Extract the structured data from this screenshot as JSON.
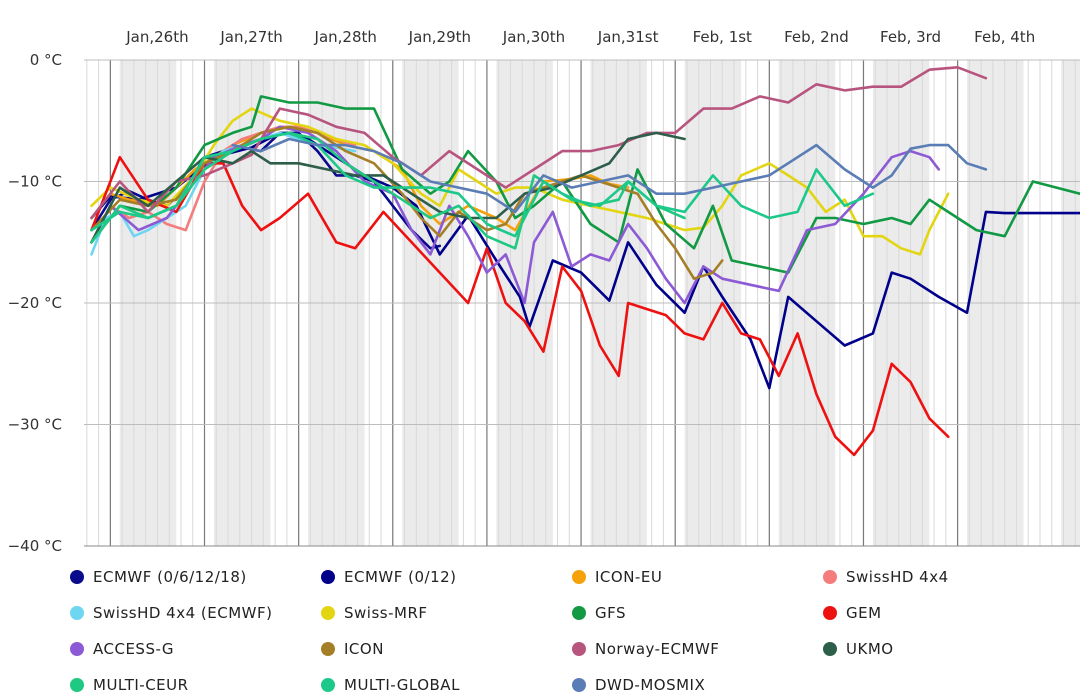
{
  "chart_data": {
    "type": "line",
    "title": "",
    "xlabel": "",
    "ylabel": "",
    "ylim": [
      -40,
      0
    ],
    "xlim": [
      25.22,
      35.8
    ],
    "y_ticks": [
      {
        "value": 0,
        "label": "0 °C"
      },
      {
        "value": -10,
        "label": "−10 °C"
      },
      {
        "value": -20,
        "label": "−20 °C"
      },
      {
        "value": -30,
        "label": "−30 °C"
      },
      {
        "value": -40,
        "label": "−40 °C"
      }
    ],
    "x_ticks": [
      {
        "value": 26,
        "label": "Jan,26th"
      },
      {
        "value": 27,
        "label": "Jan,27th"
      },
      {
        "value": 28,
        "label": "Jan,28th"
      },
      {
        "value": 29,
        "label": "Jan,29th"
      },
      {
        "value": 30,
        "label": "Jan,30th"
      },
      {
        "value": 31,
        "label": "Jan,31st"
      },
      {
        "value": 32,
        "label": "Feb, 1st"
      },
      {
        "value": 33,
        "label": "Feb, 2nd"
      },
      {
        "value": 34,
        "label": "Feb, 3rd"
      },
      {
        "value": 35,
        "label": "Feb, 4th"
      }
    ],
    "series": [
      {
        "name": "ECMWF (0/6/12/18)",
        "color": "#0a0a8c",
        "x": [
          25.3,
          25.5,
          25.7,
          25.9,
          26.1,
          26.3,
          26.5,
          26.7,
          26.9,
          27.1,
          27.3,
          27.5,
          27.7,
          27.9,
          28.1,
          28.3,
          28.5,
          28.7,
          28.9,
          29.0
        ],
        "y": [
          -14,
          -11.5,
          -10.8,
          -11.5,
          -12,
          -10.5,
          -8,
          -7.5,
          -7.2,
          -7.5,
          -6,
          -6,
          -7.5,
          -9.5,
          -9.5,
          -10,
          -12,
          -14,
          -15.5,
          -15.3
        ]
      },
      {
        "name": "ECMWF (0/12)",
        "color": "#00008b",
        "x": [
          25.3,
          25.5,
          25.8,
          26.2,
          26.6,
          27.0,
          27.3,
          27.6,
          27.9,
          28.2,
          28.5,
          28.75,
          29.0,
          29.3,
          29.6,
          29.85,
          29.95,
          30.2,
          30.5,
          30.8,
          31.0,
          31.3,
          31.6,
          31.8,
          32.0,
          32.3,
          32.5,
          32.7,
          33.0,
          33.3,
          33.6,
          33.8,
          34.0,
          34.3,
          34.6,
          34.8,
          35.0,
          35.2,
          35.8
        ],
        "y": [
          -13,
          -11.2,
          -11.5,
          -10.5,
          -8,
          -7.2,
          -6,
          -6.5,
          -8,
          -9.5,
          -10.5,
          -12,
          -16,
          -12.8,
          -16.5,
          -19.5,
          -22,
          -16.5,
          -17.5,
          -19.8,
          -15,
          -18.5,
          -20.8,
          -17,
          -19.5,
          -23,
          -27,
          -19.5,
          -21.5,
          -23.5,
          -22.5,
          -17.5,
          -18,
          -19.5,
          -20.8,
          -12.5,
          -12.6,
          -12.6,
          -12.6
        ]
      },
      {
        "name": "ICON-EU",
        "color": "#f5a10a",
        "x": [
          25.3,
          25.5,
          25.7,
          26.0,
          26.4,
          26.8,
          27.1,
          27.4,
          27.7,
          28.0,
          28.3,
          28.6,
          28.8,
          29.0,
          29.3,
          29.6,
          29.8,
          30.1,
          30.4,
          30.6,
          30.8,
          31.0
        ],
        "y": [
          -13,
          -11,
          -11.5,
          -12,
          -9,
          -7,
          -6,
          -5.5,
          -6,
          -7,
          -7.5,
          -9,
          -12,
          -13.5,
          -12,
          -13,
          -14,
          -10,
          -9.8,
          -9.5,
          -10.2,
          -10.5
        ]
      },
      {
        "name": "SwissHD 4x4",
        "color": "#f47c7c",
        "x": [
          25.3,
          25.5,
          25.7,
          25.9,
          26.1,
          26.3,
          26.5,
          26.7,
          26.9,
          27.1,
          27.3,
          27.5,
          27.7,
          27.9,
          28.1
        ],
        "y": [
          -15,
          -12,
          -13,
          -12.5,
          -13.5,
          -14,
          -10,
          -7.5,
          -6.5,
          -6,
          -5.5,
          -5.5,
          -6,
          -6.5,
          -7
        ]
      },
      {
        "name": "SwissHD 4x4 (ECMWF)",
        "color": "#6fd6f2",
        "x": [
          25.3,
          25.45,
          25.6,
          25.75,
          25.9,
          26.1,
          26.3,
          26.5,
          26.7,
          26.9,
          27.1,
          27.3,
          27.5,
          27.7,
          27.9,
          28.1
        ],
        "y": [
          -16,
          -13,
          -12.5,
          -14.5,
          -14,
          -13,
          -12,
          -9,
          -7.5,
          -7,
          -6.5,
          -6,
          -6.5,
          -7,
          -7.2,
          -7.5
        ]
      },
      {
        "name": "Swiss-MRF",
        "color": "#e3d511",
        "x": [
          25.3,
          25.5,
          25.8,
          26.1,
          26.4,
          26.6,
          26.8,
          27.0,
          27.3,
          27.6,
          27.9,
          28.2,
          28.5,
          28.8,
          29.0,
          29.2,
          29.4,
          29.6,
          29.8,
          30.0,
          30.3,
          30.6,
          30.9,
          31.2,
          31.4,
          31.6,
          31.8,
          32.0,
          32.2,
          32.5,
          32.7,
          32.9,
          33.1,
          33.3,
          33.5,
          33.7,
          33.9,
          34.1,
          34.2,
          34.4
        ],
        "y": [
          -12,
          -10.5,
          -11.5,
          -12,
          -9.5,
          -7,
          -5,
          -4,
          -5,
          -5.5,
          -6.5,
          -7,
          -8.5,
          -11,
          -12,
          -9,
          -10,
          -11,
          -10.5,
          -10.5,
          -11.5,
          -12,
          -12.5,
          -13,
          -13.5,
          -14,
          -13.8,
          -12,
          -9.5,
          -8.5,
          -9.5,
          -10.5,
          -12.5,
          -11.5,
          -14.5,
          -14.5,
          -15.5,
          -16,
          -14,
          -11
        ]
      },
      {
        "name": "GFS",
        "color": "#119943",
        "x": [
          25.3,
          25.6,
          25.9,
          26.2,
          26.5,
          26.8,
          27.0,
          27.1,
          27.4,
          27.7,
          28.0,
          28.3,
          28.6,
          28.9,
          29.1,
          29.3,
          29.6,
          29.8,
          30.0,
          30.3,
          30.6,
          30.9,
          31.1,
          31.4,
          31.7,
          31.9,
          32.1,
          32.4,
          32.7,
          33.0,
          33.2,
          33.5,
          33.8,
          34.0,
          34.2,
          34.4,
          34.7,
          35.0,
          35.3,
          35.8
        ],
        "y": [
          -15,
          -12,
          -12.5,
          -10.5,
          -7,
          -6,
          -5.5,
          -3,
          -3.5,
          -3.5,
          -4,
          -4,
          -9,
          -11,
          -10,
          -7.5,
          -10,
          -13,
          -12,
          -10,
          -13.5,
          -15,
          -9,
          -13.5,
          -15.5,
          -12,
          -16.5,
          -17,
          -17.5,
          -13,
          -13,
          -13.5,
          -13,
          -13.5,
          -11.5,
          -12.5,
          -14,
          -14.5,
          -10,
          -11
        ]
      },
      {
        "name": "GEM",
        "color": "#ee1111",
        "x": [
          25.3,
          25.6,
          25.9,
          26.2,
          26.5,
          26.7,
          26.9,
          27.1,
          27.3,
          27.6,
          27.9,
          28.1,
          28.4,
          28.7,
          29.0,
          29.3,
          29.5,
          29.7,
          29.9,
          30.1,
          30.3,
          30.5,
          30.7,
          30.9,
          31.0,
          31.2,
          31.4,
          31.6,
          31.8,
          32.0,
          32.2,
          32.4,
          32.6,
          32.8,
          33.0,
          33.2,
          33.4,
          33.6,
          33.8,
          34.0,
          34.2,
          34.4
        ],
        "y": [
          -14,
          -8,
          -11.5,
          -12.5,
          -8.5,
          -8.5,
          -12,
          -14,
          -13,
          -11,
          -15,
          -15.5,
          -12.5,
          -15,
          -17.5,
          -20,
          -15.5,
          -20,
          -21.5,
          -24,
          -17,
          -19,
          -23.5,
          -26,
          -20,
          -20.5,
          -21,
          -22.5,
          -23,
          -20,
          -22.5,
          -23,
          -26,
          -22.5,
          -27.5,
          -31,
          -32.5,
          -30.5,
          -25,
          -26.5,
          -29.5,
          -31
        ]
      },
      {
        "name": "ACCESS-G",
        "color": "#8c5ad4",
        "x": [
          25.3,
          25.5,
          25.8,
          26.1,
          26.4,
          26.6,
          26.9,
          27.1,
          27.3,
          27.6,
          27.9,
          28.2,
          28.5,
          28.7,
          28.9,
          29.1,
          29.3,
          29.5,
          29.7,
          29.9,
          30.0,
          30.2,
          30.4,
          30.6,
          30.8,
          31.0,
          31.2,
          31.4,
          31.6,
          31.8,
          32.0,
          32.3,
          32.6,
          32.9,
          33.2,
          33.5,
          33.8,
          34.0,
          34.2,
          34.3
        ],
        "y": [
          -15,
          -12,
          -14,
          -13,
          -10,
          -8,
          -7,
          -6.5,
          -5.5,
          -6,
          -7.5,
          -10,
          -11,
          -14,
          -16,
          -12,
          -14.5,
          -17.5,
          -16,
          -20,
          -15,
          -12.5,
          -17,
          -16,
          -16.5,
          -13.5,
          -15.5,
          -18,
          -20,
          -17,
          -18,
          -18.5,
          -19,
          -14,
          -13.5,
          -11,
          -8,
          -7.5,
          -8,
          -9
        ]
      },
      {
        "name": "ICON",
        "color": "#a57f28",
        "x": [
          25.3,
          25.6,
          25.9,
          26.2,
          26.5,
          26.8,
          27.1,
          27.4,
          27.7,
          28.0,
          28.3,
          28.6,
          28.8,
          29.0,
          29.2,
          29.5,
          29.7,
          29.9,
          30.1,
          30.3,
          30.5,
          30.7,
          30.9,
          31.1,
          31.3,
          31.5,
          31.7,
          31.9,
          32.0
        ],
        "y": [
          -14,
          -11.5,
          -12,
          -11.5,
          -8.5,
          -7.5,
          -6,
          -5.5,
          -6,
          -7.5,
          -8.5,
          -11,
          -13,
          -14.5,
          -12.5,
          -14,
          -13.5,
          -11,
          -10.5,
          -10,
          -9.5,
          -10,
          -10.5,
          -11,
          -13.5,
          -15.5,
          -18,
          -17.5,
          -16.5
        ]
      },
      {
        "name": "Norway-ECMWF",
        "color": "#b8557f",
        "x": [
          25.3,
          25.6,
          25.9,
          26.2,
          26.5,
          26.8,
          27.0,
          27.3,
          27.6,
          27.9,
          28.2,
          28.5,
          28.8,
          29.1,
          29.4,
          29.7,
          30.0,
          30.3,
          30.6,
          30.9,
          31.2,
          31.5,
          31.8,
          32.1,
          32.4,
          32.7,
          33.0,
          33.3,
          33.6,
          33.9,
          34.2,
          34.5,
          34.8
        ],
        "y": [
          -13,
          -10,
          -12.5,
          -10,
          -9.5,
          -8.5,
          -7.8,
          -4,
          -4.5,
          -5.5,
          -6,
          -8,
          -9.5,
          -7.5,
          -9,
          -10.5,
          -9,
          -7.5,
          -7.5,
          -7,
          -6,
          -6,
          -4,
          -4,
          -3,
          -3.5,
          -2,
          -2.5,
          -2.2,
          -2.2,
          -0.8,
          -0.6,
          -1.5
        ]
      },
      {
        "name": "UKMO",
        "color": "#2d5e4a",
        "x": [
          25.3,
          25.6,
          25.9,
          26.2,
          26.5,
          26.8,
          27.0,
          27.2,
          27.5,
          27.8,
          28.1,
          28.4,
          28.7,
          29.0,
          29.3,
          29.6,
          29.9,
          30.2,
          30.5,
          30.8,
          31.0,
          31.3,
          31.6
        ],
        "y": [
          -15,
          -10.5,
          -12,
          -10,
          -8,
          -8.5,
          -7.5,
          -8.5,
          -8.5,
          -9,
          -9.5,
          -9.5,
          -11,
          -12.5,
          -13,
          -13,
          -11,
          -10.5,
          -9.5,
          -8.5,
          -6.5,
          -6,
          -6.5
        ]
      },
      {
        "name": "MULTI-CEUR",
        "color": "#1fc982",
        "x": [
          25.3,
          25.6,
          25.9,
          26.2,
          26.5,
          26.8,
          27.1,
          27.4,
          27.7,
          28.0,
          28.3,
          28.6,
          28.9,
          29.2,
          29.5,
          29.8,
          30.0,
          30.3,
          30.6,
          30.9,
          31.0,
          31.3,
          31.6
        ],
        "y": [
          -15,
          -12,
          -13,
          -12,
          -9,
          -7.5,
          -6.5,
          -6,
          -6.5,
          -8.5,
          -10,
          -11.5,
          -13,
          -12,
          -14.5,
          -15.5,
          -9.5,
          -11,
          -12,
          -11.5,
          -10,
          -12,
          -13
        ]
      },
      {
        "name": "MULTI-GLOBAL",
        "color": "#1dc98a",
        "x": [
          25.3,
          25.6,
          25.9,
          26.2,
          26.5,
          26.8,
          27.1,
          27.4,
          27.7,
          28.0,
          28.3,
          28.6,
          28.9,
          29.2,
          29.5,
          29.8,
          30.1,
          30.4,
          30.7,
          31.0,
          31.3,
          31.6,
          31.9,
          32.2,
          32.5,
          32.8,
          33.0,
          33.3,
          33.6
        ],
        "y": [
          -14,
          -12.5,
          -13,
          -12,
          -8,
          -7.5,
          -6.5,
          -6,
          -7,
          -9.5,
          -10.5,
          -10.5,
          -10.5,
          -11,
          -13.5,
          -14.5,
          -10,
          -11.5,
          -12,
          -10,
          -12,
          -12.5,
          -9.5,
          -12,
          -13,
          -12.5,
          -9,
          -12,
          -11
        ]
      },
      {
        "name": "DWD-MOSMIX",
        "color": "#5b7db5",
        "x": [
          26.8,
          27.1,
          27.4,
          27.7,
          28.0,
          28.3,
          28.6,
          28.9,
          29.2,
          29.5,
          29.8,
          30.1,
          30.4,
          30.7,
          31.0,
          31.3,
          31.6,
          31.9,
          32.2,
          32.5,
          32.8,
          33.0,
          33.3,
          33.6,
          33.8,
          34.0,
          34.2,
          34.4,
          34.6,
          34.8
        ],
        "y": [
          -7,
          -7.5,
          -6.5,
          -7,
          -7,
          -7.5,
          -8.5,
          -10,
          -10.5,
          -11,
          -12.5,
          -9.5,
          -10.5,
          -10,
          -9.5,
          -11,
          -11,
          -10.5,
          -10,
          -9.5,
          -8,
          -7,
          -9,
          -10.5,
          -9.5,
          -7.3,
          -7,
          -7,
          -8.5,
          -9
        ]
      }
    ]
  }
}
